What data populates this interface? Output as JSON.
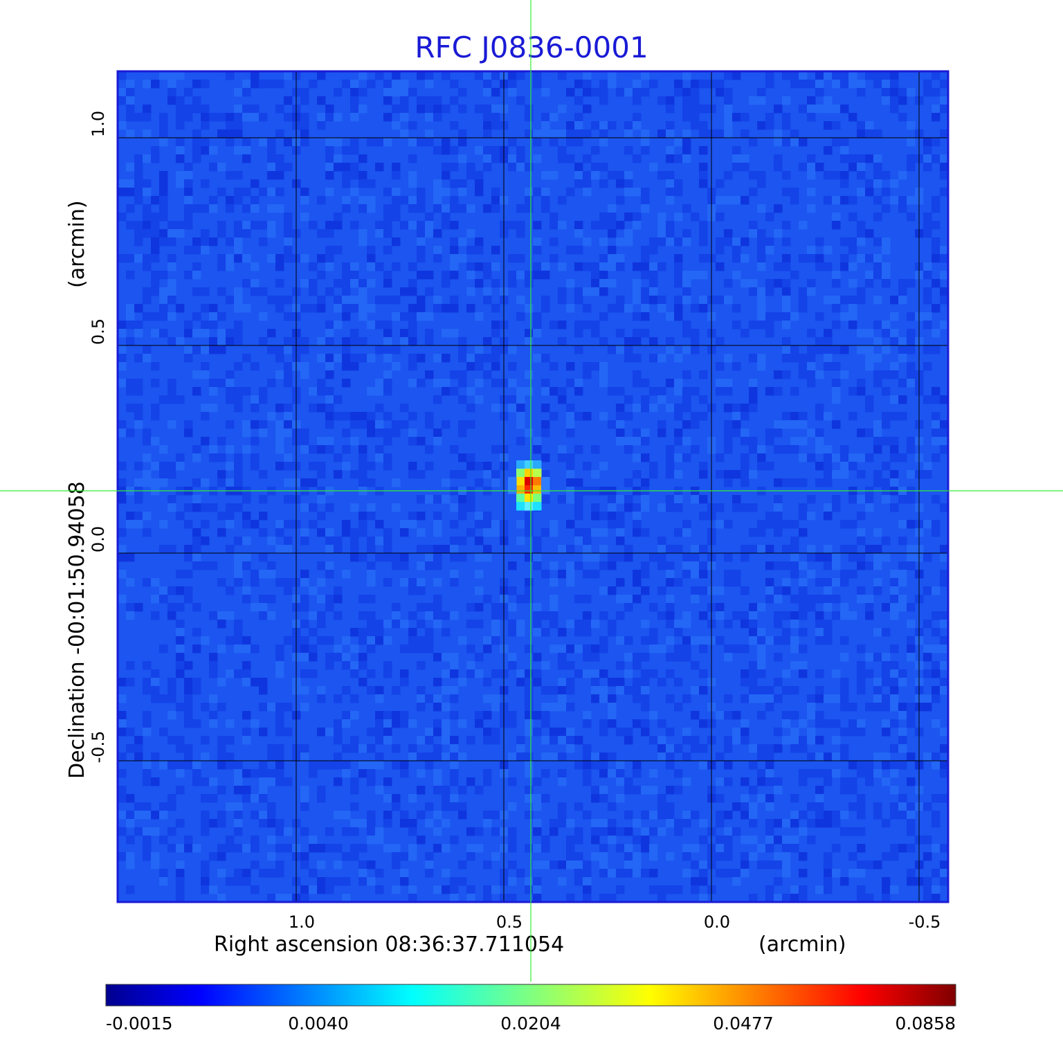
{
  "chart_data": {
    "type": "heatmap",
    "title": "RFC J0836-0001",
    "xlabel": "Right ascension  08:36:37.711054",
    "xunit": "(arcmin)",
    "ylabel": "Declination  -00:01:50.94058",
    "yunit": "(arcmin)",
    "x_ticks": [
      "1.0",
      "0.5",
      "0.0",
      "-0.5"
    ],
    "x_tick_values": [
      1.0,
      0.5,
      0.0,
      -0.5
    ],
    "y_ticks": [
      "1.0",
      "0.5",
      "0.0",
      "-0.5"
    ],
    "y_tick_values": [
      1.0,
      0.5,
      0.0,
      -0.5
    ],
    "xlim": [
      1.43,
      -0.57
    ],
    "ylim": [
      -0.84,
      1.16
    ],
    "x_axis_reversed": true,
    "grid": true,
    "crosshair": {
      "x": 0.435,
      "y": 0.15,
      "color": "#33ee33"
    },
    "peak": {
      "x": 0.435,
      "y": 0.155,
      "value": 0.0858
    },
    "colormap": "jet",
    "colorbar_ticks": [
      "-0.0015",
      "0.0040",
      "0.0204",
      "0.0477",
      "0.0858"
    ],
    "colorbar_values": [
      -0.0015,
      0.004,
      0.0204,
      0.0477,
      0.0858
    ],
    "colors": {
      "title": "#1a1ad6",
      "background_field": "#1c55f0",
      "grid": "#000000",
      "frame": "#1a1ad6"
    }
  }
}
